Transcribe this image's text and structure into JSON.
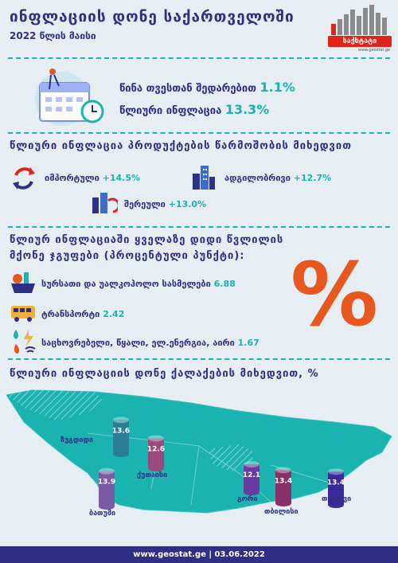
{
  "header": {
    "title": "ინფლაციის დონე საქართველოში",
    "subtitle": "2022 წლის მაისი",
    "logo_word": "საქსტატი",
    "logo_url": "www.geostat.ge"
  },
  "summary": {
    "monthly_label": "წინა თვესთან შედარებით",
    "monthly_value": "1.1%",
    "annual_label": "წლიური ინფლაცია",
    "annual_value": "13.3%"
  },
  "origin": {
    "title": "წლიური ინფლაცია პროდუქტების წარმოშობის მიხედვით",
    "imported_label": "იმპორტული",
    "imported_value": "+14.5%",
    "local_label": "ადგილობრივი",
    "local_value": "+12.7%",
    "mixed_label": "შერეული",
    "mixed_value": "+13.0%"
  },
  "groups": {
    "title_line1": "წლიურ ინფლაციაში ყველაზე დიდი წვლილის",
    "title_line2": "მქონე ჯგუფები (პროცენტული პუნქტი):",
    "food_label": "სურსათი და უალკოჰოლო სასმელები",
    "food_value": "6.88",
    "transport_label": "ტრანსპორტი",
    "transport_value": "2.42",
    "housing_label": "საცხოვრებელი, წყალი, ელ.ენერგია, აირი",
    "housing_value": "1.67",
    "percent_symbol": "%"
  },
  "cities": {
    "title": "წლიური ინფლაციის დონე ქალაქების მიხედვით, %",
    "zugdidi_label": "ზუგდიდი",
    "zugdidi_value": "13.6",
    "kutaisi_label": "ქუთაისი",
    "kutaisi_value": "12.6",
    "batumi_label": "ბათუმი",
    "batumi_value": "13.9",
    "gori_label": "გორი",
    "gori_value": "12.1",
    "tbilisi_label": "თბილისი",
    "tbilisi_value": "13.4",
    "telavi_label": "თელავი",
    "telavi_value": "13.4"
  },
  "footer": {
    "text": "www.geostat.ge | 03.06.2022"
  },
  "colors": {
    "navy": "#2e2f86",
    "teal": "#1ab3b0",
    "orange": "#e8571e",
    "red": "#e2231a"
  },
  "chart_data": {
    "type": "bar",
    "title": "წლიური ინფლაციის დონე ქალაქების მიხედვით, %",
    "categories": [
      "ზუგდიდი",
      "ქუთაისი",
      "ბათუმი",
      "გორი",
      "თბილისი",
      "თელავი"
    ],
    "values": [
      13.6,
      12.6,
      13.9,
      12.1,
      13.4,
      13.4
    ]
  }
}
